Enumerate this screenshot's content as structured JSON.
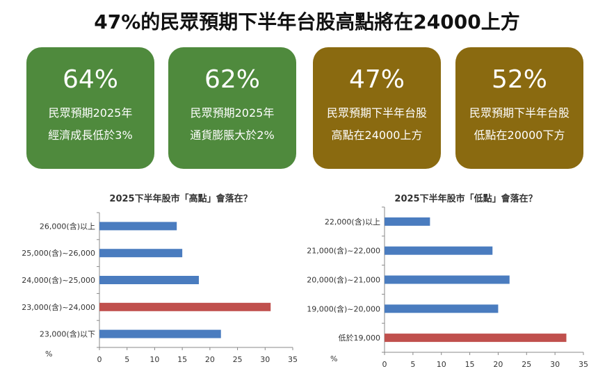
{
  "title": "47%的民眾預期下半年台股高點將在24000上方",
  "colors": {
    "green": "#4f8a3d",
    "brown": "#8a6a10",
    "bar": "#4a7cbf",
    "highlight": "#c0504d"
  },
  "cards": [
    {
      "value": "64%",
      "line1": "民眾預期2025年",
      "line2": "經濟成長低於3%",
      "color": "#4f8a3d"
    },
    {
      "value": "62%",
      "line1": "民眾預期2025年",
      "line2": "通貨膨脹大於2%",
      "color": "#4f8a3d"
    },
    {
      "value": "47%",
      "line1": "民眾預期下半年台股",
      "line2": "高點在24000上方",
      "color": "#8a6a10"
    },
    {
      "value": "52%",
      "line1": "民眾預期下半年台股",
      "line2": "低點在20000下方",
      "color": "#8a6a10"
    }
  ],
  "chart_data": [
    {
      "type": "bar",
      "orientation": "horizontal",
      "title": "2025下半年股市「高點」會落在？",
      "xlabel": "%",
      "xlim": [
        0,
        35
      ],
      "xticks": [
        0,
        5,
        10,
        15,
        20,
        25,
        30,
        35
      ],
      "categories": [
        "26,000(含)以上",
        "25,000(含)~26,000",
        "24,000(含)~25,000",
        "23,000(含)~24,000",
        "23,000(含)以下"
      ],
      "values": [
        14,
        15,
        18,
        31,
        22
      ],
      "highlight_index": 3
    },
    {
      "type": "bar",
      "orientation": "horizontal",
      "title": "2025下半年股市「低點」會落在？",
      "xlabel": "%",
      "xlim": [
        0,
        35
      ],
      "xticks": [
        0,
        5,
        10,
        15,
        20,
        25,
        30,
        35
      ],
      "categories": [
        "22,000(含)以上",
        "21,000(含)~22,000",
        "20,000(含)~21,000",
        "19,000(含)~20,000",
        "低於19,000"
      ],
      "values": [
        8,
        19,
        22,
        20,
        32
      ],
      "highlight_index": 4
    }
  ]
}
